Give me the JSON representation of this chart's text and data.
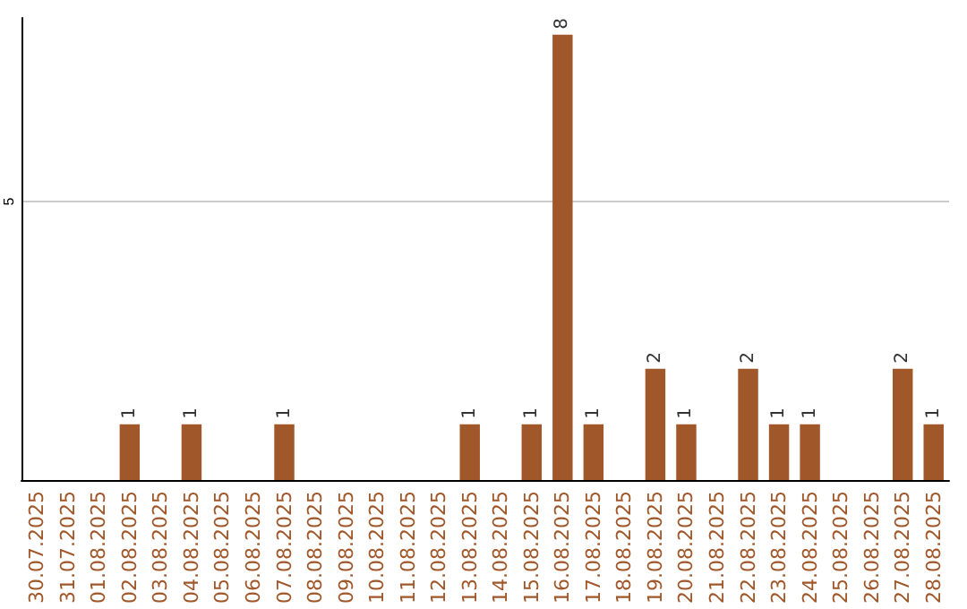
{
  "chart_data": {
    "type": "bar",
    "categories": [
      "30.07.2025",
      "31.07.2025",
      "01.08.2025",
      "02.08.2025",
      "03.08.2025",
      "04.08.2025",
      "05.08.2025",
      "06.08.2025",
      "07.08.2025",
      "08.08.2025",
      "09.08.2025",
      "10.08.2025",
      "11.08.2025",
      "12.08.2025",
      "13.08.2025",
      "14.08.2025",
      "15.08.2025",
      "16.08.2025",
      "17.08.2025",
      "18.08.2025",
      "19.08.2025",
      "20.08.2025",
      "21.08.2025",
      "22.08.2025",
      "23.08.2025",
      "24.08.2025",
      "25.08.2025",
      "26.08.2025",
      "27.08.2025",
      "28.08.2025"
    ],
    "values": [
      0,
      0,
      0,
      1,
      0,
      1,
      0,
      0,
      1,
      0,
      0,
      0,
      0,
      0,
      1,
      0,
      1,
      8,
      1,
      0,
      2,
      1,
      0,
      2,
      1,
      1,
      0,
      0,
      2,
      1
    ],
    "value_labels": [
      null,
      null,
      null,
      "1",
      null,
      "1",
      null,
      null,
      "1",
      null,
      null,
      null,
      null,
      null,
      "1",
      null,
      "1",
      "8",
      "1",
      null,
      "2",
      "1",
      null,
      "2",
      "1",
      "1",
      null,
      null,
      "2",
      "1"
    ],
    "color": "#a0572a",
    "ylim": [
      0,
      8.3
    ],
    "yticks": [
      5
    ],
    "grid": "y"
  }
}
